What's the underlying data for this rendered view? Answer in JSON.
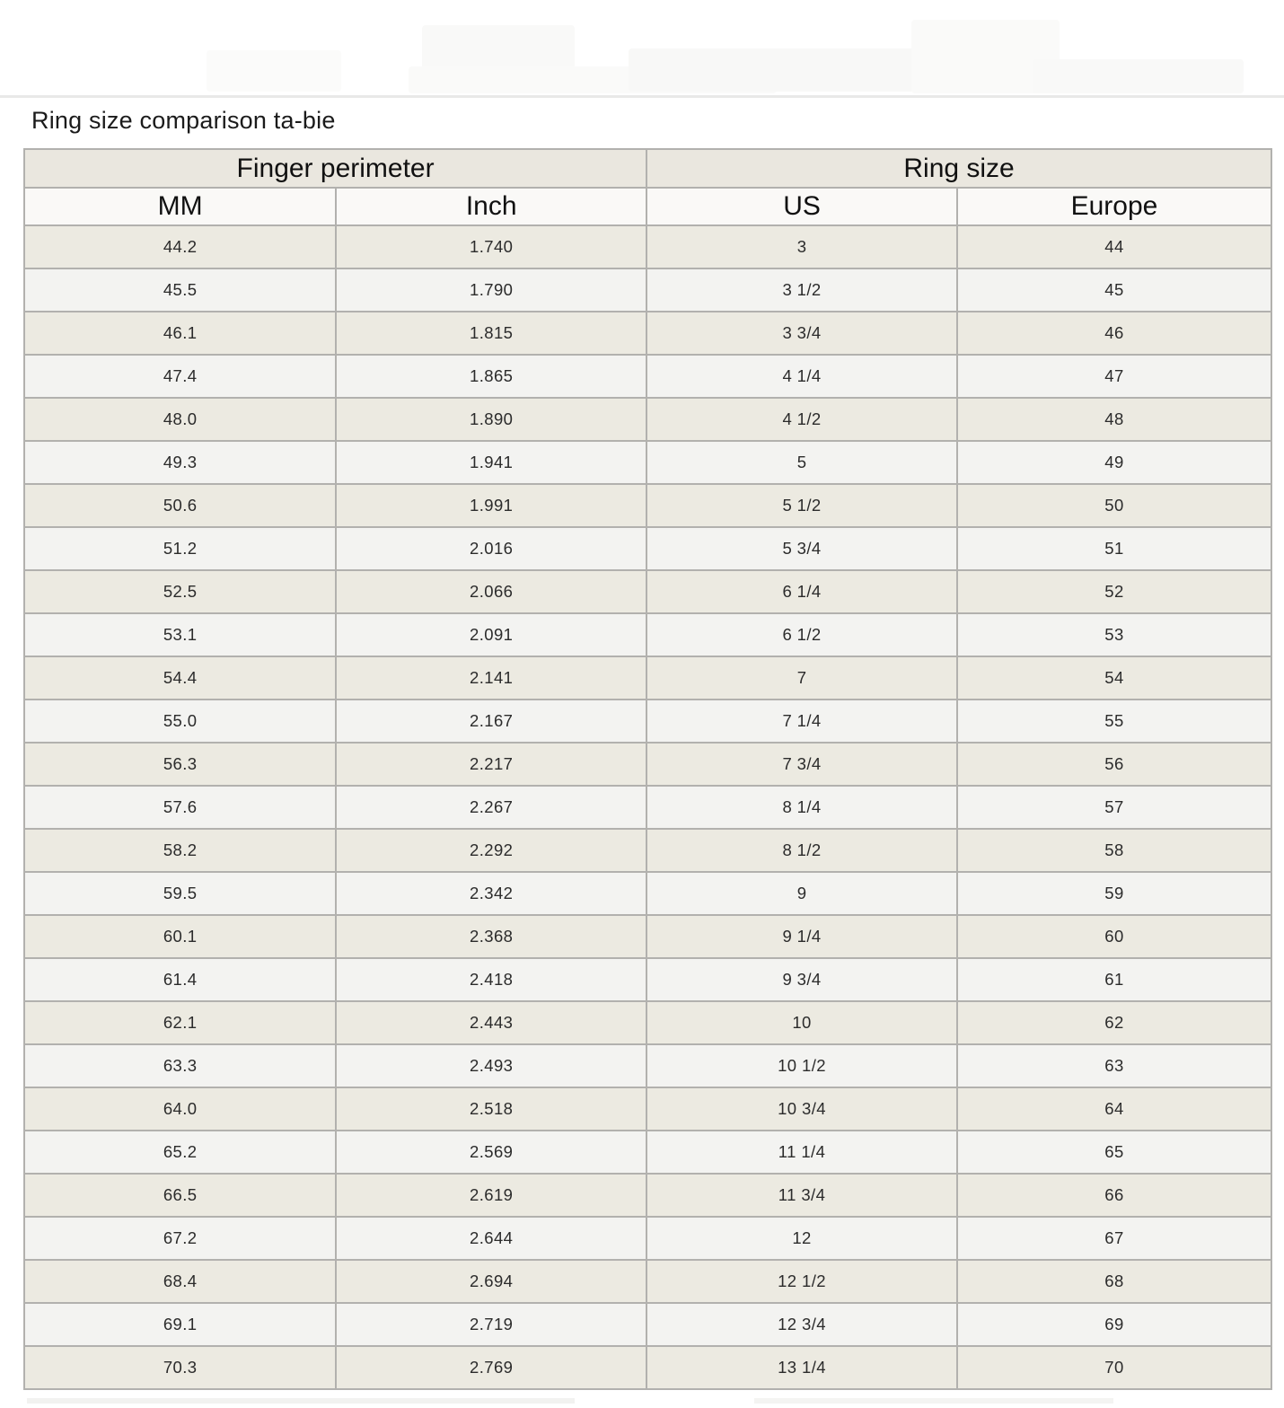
{
  "page": {
    "title": "Ring size comparison ta-bie"
  },
  "chart_data": {
    "type": "table",
    "title": "Ring size comparison ta-bie",
    "header_groups": [
      "Finger perimeter",
      "Ring size"
    ],
    "columns": [
      "MM",
      "Inch",
      "US",
      "Europe"
    ],
    "rows": [
      [
        "44.2",
        "1.740",
        "3",
        "44"
      ],
      [
        "45.5",
        "1.790",
        "3 1/2",
        "45"
      ],
      [
        "46.1",
        "1.815",
        "3 3/4",
        "46"
      ],
      [
        "47.4",
        "1.865",
        "4 1/4",
        "47"
      ],
      [
        "48.0",
        "1.890",
        "4 1/2",
        "48"
      ],
      [
        "49.3",
        "1.941",
        "5",
        "49"
      ],
      [
        "50.6",
        "1.991",
        "5 1/2",
        "50"
      ],
      [
        "51.2",
        "2.016",
        "5 3/4",
        "51"
      ],
      [
        "52.5",
        "2.066",
        "6 1/4",
        "52"
      ],
      [
        "53.1",
        "2.091",
        "6 1/2",
        "53"
      ],
      [
        "54.4",
        "2.141",
        "7",
        "54"
      ],
      [
        "55.0",
        "2.167",
        "7 1/4",
        "55"
      ],
      [
        "56.3",
        "2.217",
        "7 3/4",
        "56"
      ],
      [
        "57.6",
        "2.267",
        "8 1/4",
        "57"
      ],
      [
        "58.2",
        "2.292",
        "8 1/2",
        "58"
      ],
      [
        "59.5",
        "2.342",
        "9",
        "59"
      ],
      [
        "60.1",
        "2.368",
        "9 1/4",
        "60"
      ],
      [
        "61.4",
        "2.418",
        "9 3/4",
        "61"
      ],
      [
        "62.1",
        "2.443",
        "10",
        "62"
      ],
      [
        "63.3",
        "2.493",
        "10 1/2",
        "63"
      ],
      [
        "64.0",
        "2.518",
        "10 3/4",
        "64"
      ],
      [
        "65.2",
        "2.569",
        "11 1/4",
        "65"
      ],
      [
        "66.5",
        "2.619",
        "11 3/4",
        "66"
      ],
      [
        "67.2",
        "2.644",
        "12",
        "67"
      ],
      [
        "68.4",
        "2.694",
        "12 1/2",
        "68"
      ],
      [
        "69.1",
        "2.719",
        "12 3/4",
        "69"
      ],
      [
        "70.3",
        "2.769",
        "13 1/4",
        "70"
      ]
    ]
  },
  "colors": {
    "row_beige": "#ECEAE1",
    "row_light": "#F3F3F1",
    "header_group_bg": "#EAE7DF",
    "header_col_bg": "#FAF9F7",
    "grid_border": "#B2B1AE",
    "top_divider": "#E9E9E8",
    "text": "#1F1F1F"
  }
}
